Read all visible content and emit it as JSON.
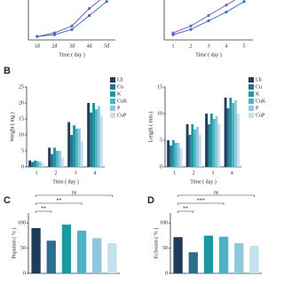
{
  "chart_data": [
    {
      "type": "line",
      "xlabel": "Time ( day )",
      "categories": [
        "1d",
        "2d",
        "3d",
        "4d",
        "5d"
      ],
      "ylim": [
        0,
        14
      ],
      "series": [
        {
          "color": "#7b5cb8",
          "values": [
            1,
            2,
            4,
            9,
            13
          ]
        },
        {
          "color": "#3b6fc4",
          "values": [
            1,
            1.5,
            3,
            7,
            11
          ]
        }
      ]
    },
    {
      "type": "line",
      "xlabel": "Time ( day )",
      "categories": [
        "1",
        "2",
        "3",
        "4",
        "5"
      ],
      "ylim": [
        0,
        14
      ],
      "series": [
        {
          "color": "#7b5cb8",
          "values": [
            2,
            4,
            7,
            10,
            13
          ]
        },
        {
          "color": "#3b6fc4",
          "values": [
            1.5,
            3,
            5.5,
            8,
            11
          ]
        }
      ]
    },
    {
      "type": "grouped-bar",
      "panel": "B",
      "ylabel": "Weight ( mg )",
      "xlabel": "Time ( day )",
      "categories": [
        "1",
        "2",
        "3",
        "4"
      ],
      "ylim": [
        0,
        25
      ],
      "yticks": [
        0,
        5,
        10,
        15,
        20,
        25
      ],
      "series": [
        {
          "name": "Lb",
          "color": "#1f3d5a",
          "values": [
            2,
            6,
            14,
            20
          ]
        },
        {
          "name": "Cu",
          "color": "#2e6f8e",
          "values": [
            1.5,
            4,
            10,
            17
          ]
        },
        {
          "name": "K",
          "color": "#1a9aa0",
          "values": [
            2,
            6,
            13,
            20
          ]
        },
        {
          "name": "CuK",
          "color": "#4fb3c6",
          "values": [
            1.8,
            5,
            12,
            18
          ]
        },
        {
          "name": "P",
          "color": "#8fc8dc",
          "values": [
            1.6,
            5,
            12,
            19
          ]
        },
        {
          "name": "CuP",
          "color": "#c5e0ee",
          "values": [
            1.2,
            3,
            8,
            16
          ]
        }
      ]
    },
    {
      "type": "grouped-bar",
      "ylabel": "Length ( mm )",
      "xlabel": "Time ( day )",
      "categories": [
        "1",
        "2",
        "3",
        "4"
      ],
      "ylim": [
        0,
        15
      ],
      "yticks": [
        0,
        5,
        10,
        15
      ],
      "series": [
        {
          "name": "Lb",
          "color": "#1f3d5a",
          "values": [
            5,
            8,
            10,
            13
          ]
        },
        {
          "name": "Cu",
          "color": "#2e6f8e",
          "values": [
            4,
            6,
            8,
            11
          ]
        },
        {
          "name": "K",
          "color": "#1a9aa0",
          "values": [
            5,
            8,
            10,
            13
          ]
        },
        {
          "name": "CuK",
          "color": "#4fb3c6",
          "values": [
            4.5,
            7,
            9,
            12
          ]
        },
        {
          "name": "P",
          "color": "#8fc8dc",
          "values": [
            4.5,
            7.5,
            9.5,
            12.5
          ]
        },
        {
          "name": "CuP",
          "color": "#c5e0ee",
          "values": [
            3.5,
            6,
            8,
            10
          ]
        }
      ]
    },
    {
      "type": "bar",
      "panel": "C",
      "ylabel": "Pupation ( % )",
      "ylim": [
        0,
        120
      ],
      "yticks": [
        0,
        50,
        100
      ],
      "values": [
        90,
        65,
        97,
        85,
        70,
        60
      ],
      "colors": [
        "#1f3d5a",
        "#2e6f8e",
        "#1a9aa0",
        "#4fb3c6",
        "#8fc8dc",
        "#c5e0ee"
      ],
      "annotations": [
        "**",
        "**",
        "ns"
      ]
    },
    {
      "type": "bar",
      "panel": "D",
      "ylabel": "Eclosion ( % )",
      "ylim": [
        0,
        120
      ],
      "yticks": [
        0,
        50,
        100
      ],
      "values": [
        72,
        42,
        75,
        73,
        60,
        55
      ],
      "colors": [
        "#1f3d5a",
        "#2e6f8e",
        "#1a9aa0",
        "#4fb3c6",
        "#8fc8dc",
        "#c5e0ee"
      ],
      "annotations": [
        "**",
        "***",
        "ns"
      ]
    }
  ]
}
